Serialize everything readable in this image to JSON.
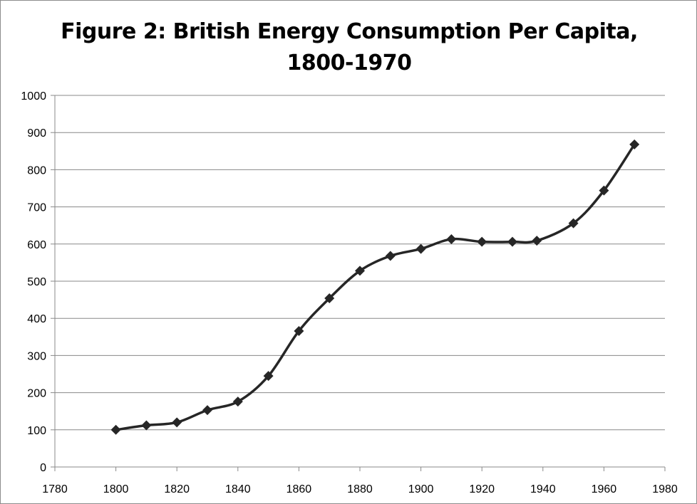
{
  "chart_data": {
    "type": "line",
    "title_line1": "Figure 2: British Energy Consumption Per Capita,",
    "title_line2": "1800-1970",
    "xlabel": "",
    "ylabel": "",
    "xlim": [
      1780,
      1980
    ],
    "ylim": [
      0,
      1000
    ],
    "x_ticks": [
      1780,
      1800,
      1820,
      1840,
      1860,
      1880,
      1900,
      1920,
      1940,
      1960,
      1980
    ],
    "y_ticks": [
      0,
      100,
      200,
      300,
      400,
      500,
      600,
      700,
      800,
      900,
      1000
    ],
    "grid": "horizontal",
    "legend": "none",
    "line_color": "#262626",
    "marker": "diamond",
    "series": [
      {
        "x": [
          1800,
          1810,
          1820,
          1830,
          1840,
          1850,
          1860,
          1870,
          1880,
          1890,
          1900,
          1910,
          1920,
          1930,
          1938,
          1950,
          1960,
          1970
        ],
        "values": [
          100,
          112,
          120,
          153,
          176,
          245,
          366,
          454,
          528,
          568,
          587,
          613,
          606,
          606,
          609,
          656,
          744,
          868
        ]
      }
    ]
  }
}
